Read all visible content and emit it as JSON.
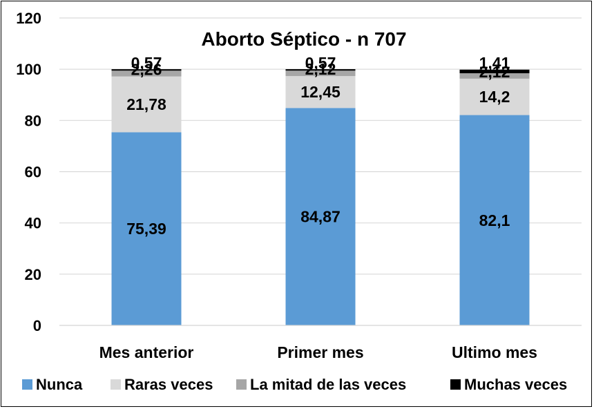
{
  "chart_data": {
    "type": "bar",
    "stacked": true,
    "title": "Aborto Séptico - n 707",
    "categories": [
      "Mes anterior",
      "Primer mes",
      "Ultimo mes"
    ],
    "series": [
      {
        "name": "Nunca",
        "color": "#5b9bd5",
        "values": [
          75.39,
          84.87,
          82.1
        ],
        "labels": [
          "75,39",
          "84,87",
          "82,1"
        ]
      },
      {
        "name": "Raras veces",
        "color": "#d9d9d9",
        "values": [
          21.78,
          12.45,
          14.2
        ],
        "labels": [
          "21,78",
          "12,45",
          "14,2"
        ]
      },
      {
        "name": "La mitad de las veces",
        "color": "#a6a6a6",
        "values": [
          2.26,
          2.12,
          2.12
        ],
        "labels": [
          "2,26",
          "2,12",
          "2,12"
        ]
      },
      {
        "name": "Muchas veces",
        "color": "#000000",
        "values": [
          0.57,
          0.57,
          1.41
        ],
        "labels": [
          "0,57",
          "0,57",
          "1,41"
        ]
      }
    ],
    "yticks": [
      "0",
      "20",
      "40",
      "60",
      "80",
      "100",
      "120"
    ],
    "ylim": [
      0,
      120
    ],
    "grid": true,
    "legend_position": "bottom"
  }
}
